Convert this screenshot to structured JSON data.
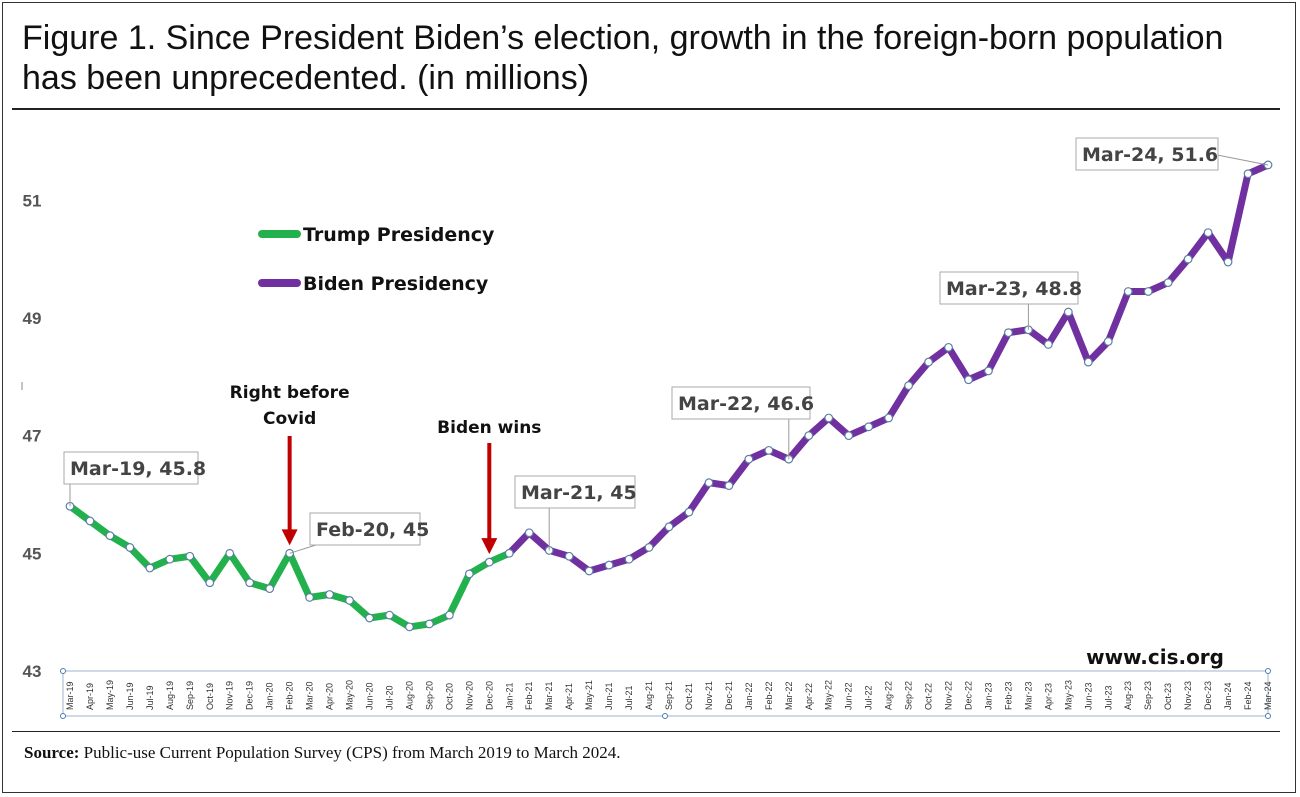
{
  "header": {
    "title": "Figure 1. Since President Biden’s election, growth in the foreign-born population has been unprecedented. (in millions)"
  },
  "footer": {
    "source_label": "Source:",
    "source_text": " Public-use Current Population Survey (CPS) from March 2019 to March 2024."
  },
  "colors": {
    "trump": "#22b14c",
    "biden": "#7030a0",
    "arrow": "#c00000",
    "marker_fill": "#ffffff",
    "marker_stroke": "#5b7fa6"
  },
  "chart_data": {
    "type": "line",
    "title": "Figure 1. Since President Biden’s election, growth in the foreign-born population has been unprecedented. (in millions)",
    "xlabel": "",
    "ylabel": "",
    "ylim": [
      43,
      52.5
    ],
    "yticks": [
      43,
      45,
      47,
      49,
      51
    ],
    "grid": false,
    "categories": [
      "Mar-19",
      "Apr-19",
      "May-19",
      "Jun-19",
      "Jul-19",
      "Aug-19",
      "Sep-19",
      "Oct-19",
      "Nov-19",
      "Dec-19",
      "Jan-20",
      "Feb-20",
      "Mar-20",
      "Apr-20",
      "May-20",
      "Jun-20",
      "Jul-20",
      "Aug-20",
      "Sep-20",
      "Oct-20",
      "Nov-20",
      "Dec-20",
      "Jan-21",
      "Feb-21",
      "Mar-21",
      "Apr-21",
      "May-21",
      "Jun-21",
      "Jul-21",
      "Aug-21",
      "Sep-21",
      "Oct-21",
      "Nov-21",
      "Dec-21",
      "Jan-22",
      "Feb-22",
      "Mar-22",
      "Apr-22",
      "May-22",
      "Jun-22",
      "Jul-22",
      "Aug-22",
      "Sep-22",
      "Oct-22",
      "Nov-22",
      "Dec-22",
      "Jan-23",
      "Feb-23",
      "Mar-23",
      "Apr-23",
      "May-23",
      "Jun-23",
      "Jul-23",
      "Aug-23",
      "Sep-23",
      "Oct-23",
      "Nov-23",
      "Dec-23",
      "Jan-24",
      "Feb-24",
      "Mar-24"
    ],
    "values": [
      45.8,
      45.55,
      45.3,
      45.1,
      44.75,
      44.9,
      44.95,
      44.5,
      45.0,
      44.5,
      44.4,
      45.0,
      44.25,
      44.3,
      44.2,
      43.9,
      43.95,
      43.75,
      43.8,
      43.95,
      44.65,
      44.85,
      45.0,
      45.35,
      45.05,
      44.95,
      44.7,
      44.8,
      44.9,
      45.1,
      45.45,
      45.7,
      46.2,
      46.15,
      46.6,
      46.75,
      46.6,
      47.0,
      47.3,
      47.0,
      47.15,
      47.3,
      47.85,
      48.25,
      48.5,
      47.95,
      48.1,
      48.75,
      48.8,
      48.55,
      49.1,
      48.25,
      48.6,
      49.45,
      49.45,
      49.6,
      50.0,
      50.45,
      49.95,
      51.45,
      51.6
    ],
    "series": [
      {
        "name": "Trump Presidency",
        "start": 0,
        "end": 22
      },
      {
        "name": "Biden Presidency",
        "start": 22,
        "end": 60
      }
    ],
    "x_tick_labels": [
      "Mar-19",
      "Apr-19",
      "May-19",
      "Jun-19",
      "Jul-19",
      "Aug-19",
      "Sep-19",
      "Oct-19",
      "Nov-19",
      "Dec-19",
      "Jan-20",
      "Feb-20",
      "Mar-20",
      "Apr-20",
      "May-20",
      "Jun-20",
      "Jul-20",
      "Aug-20",
      "Sep-20",
      "Oct-20",
      "Nov-20",
      "Dec-20",
      "Jan-21",
      "Feb-21",
      "Mar-21",
      "Apr-21",
      "May-21",
      "Jun-21",
      "Jul-21",
      "Aug-21",
      "Sep-21",
      "Oct-21",
      "Nov-21",
      "Dec-21",
      "Jan-22",
      "Feb-22",
      "Mar-22",
      "Apr-22",
      "May-22",
      "Jun-22",
      "Jul-22",
      "Aug-22",
      "Sep-22",
      "Oct-22",
      "Nov-22",
      "Dec-22",
      "Jan-23",
      "Feb-23",
      "Mar-23",
      "Apr-23",
      "May-23",
      "Jun-23",
      "Jul-23",
      "Aug-23",
      "Sep-23",
      "Oct-23",
      "Nov-23",
      "Dec-23",
      "Jan-24",
      "Feb-24",
      "Mar-24"
    ],
    "legend": [
      {
        "label": "Trump Presidency",
        "color": "#22b14c"
      },
      {
        "label": "Biden Presidency",
        "color": "#7030a0"
      }
    ],
    "legend_position": "top-left",
    "data_labels": [
      {
        "index": 0,
        "text": "Mar-19, 45.8"
      },
      {
        "index": 11,
        "text": "Feb-20, 45"
      },
      {
        "index": 24,
        "text": "Mar-21, 45"
      },
      {
        "index": 36,
        "text": "Mar-22, 46.6"
      },
      {
        "index": 48,
        "text": "Mar-23, 48.8"
      },
      {
        "index": 60,
        "text": "Mar-24, 51.6"
      }
    ],
    "annotations": [
      {
        "index": 11,
        "lines": [
          "Right before",
          "Covid"
        ]
      },
      {
        "index": 21,
        "lines": [
          "Biden wins"
        ]
      }
    ],
    "watermark": "www.cis.org"
  }
}
